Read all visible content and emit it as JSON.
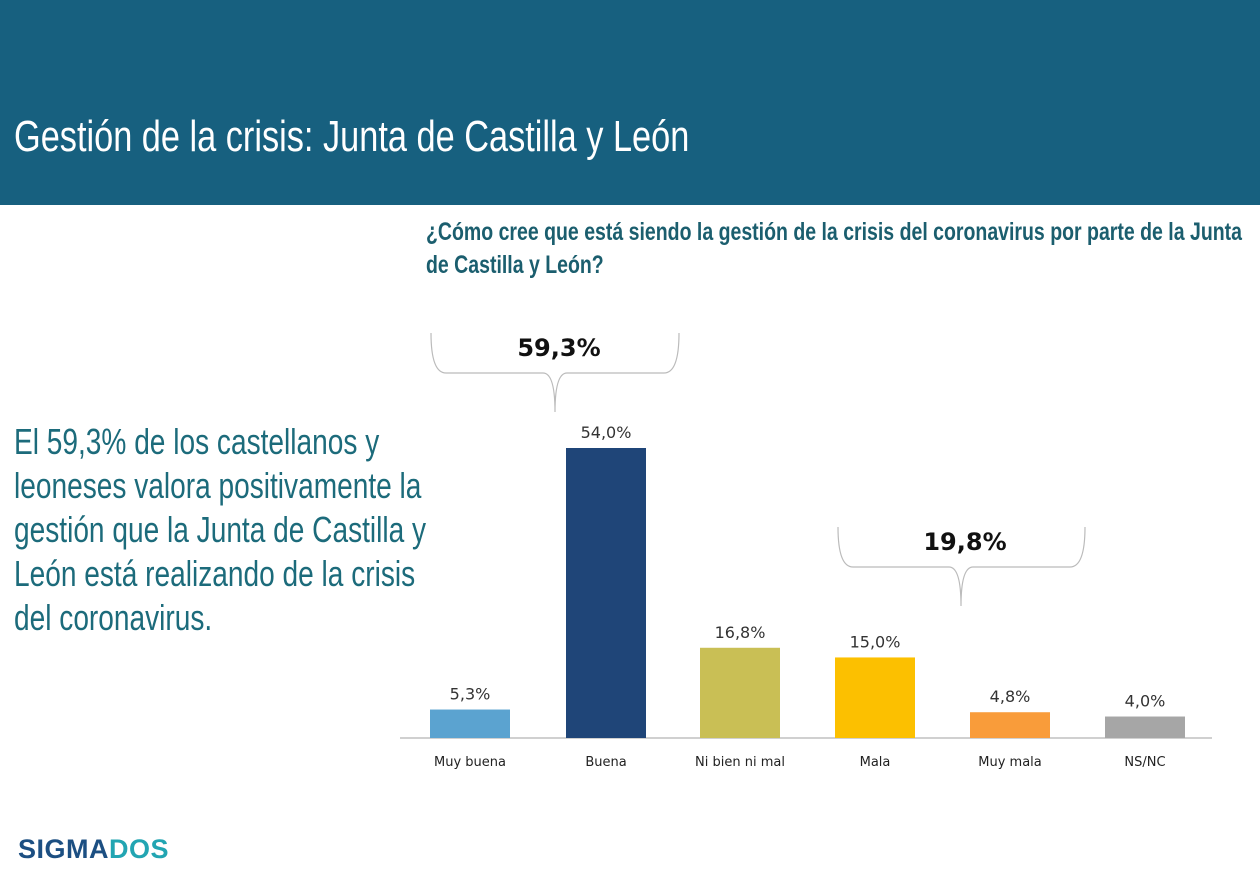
{
  "header": {
    "title": "Gestión de la crisis: Junta de Castilla y León"
  },
  "question": "¿Cómo cree que está siendo la gestión de la crisis del coronavirus por parte de la Junta de Castilla y León?",
  "summary": "El 59,3% de los castellanos y leoneses valora positivamente la gestión que la Junta de Castilla y León está realizando de la crisis del coronavirus.",
  "logo": {
    "part1": "SIGMA",
    "part2": "DOS"
  },
  "chart_data": {
    "type": "bar",
    "categories": [
      "Muy buena",
      "Buena",
      "Ni bien ni mal",
      "Mala",
      "Muy mala",
      "NS/NC"
    ],
    "values": [
      5.3,
      54.0,
      16.8,
      15.0,
      4.8,
      4.0
    ],
    "labels": [
      "5,3%",
      "54,0%",
      "16,8%",
      "15,0%",
      "4,8%",
      "4,0%"
    ],
    "colors": [
      "#5ba3d0",
      "#1f4578",
      "#c9bf55",
      "#fcc000",
      "#f99c3a",
      "#a6a6a6"
    ],
    "ylim": [
      0,
      54
    ],
    "annotations": [
      {
        "text": "59,3%",
        "groups": [
          "Muy buena",
          "Buena"
        ]
      },
      {
        "text": "19,8%",
        "groups": [
          "Mala",
          "Muy mala"
        ]
      }
    ]
  }
}
